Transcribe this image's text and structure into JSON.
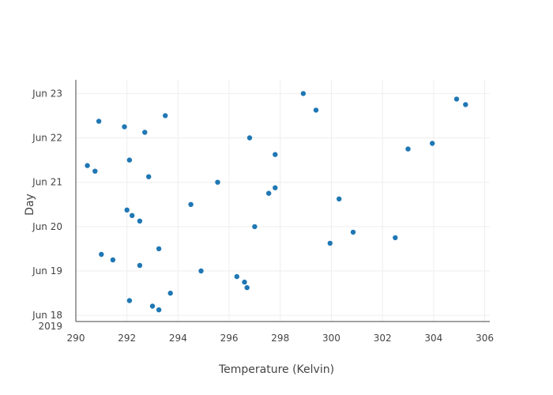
{
  "chart_data": {
    "type": "scatter",
    "xlabel": "Temperature (Kelvin)",
    "ylabel": "Day",
    "xlim": [
      290.0,
      306.2
    ],
    "x_ticks": [
      290,
      292,
      294,
      296,
      298,
      300,
      302,
      304,
      306
    ],
    "ylim": [
      "2019-06-17T20:40",
      "2019-06-23T07:25"
    ],
    "y_ticks": [
      {
        "value": "2019-06-18",
        "label": "Jun 18",
        "sublabel": "2019"
      },
      {
        "value": "2019-06-19",
        "label": "Jun 19",
        "sublabel": ""
      },
      {
        "value": "2019-06-20",
        "label": "Jun 20",
        "sublabel": ""
      },
      {
        "value": "2019-06-21",
        "label": "Jun 21",
        "sublabel": ""
      },
      {
        "value": "2019-06-22",
        "label": "Jun 22",
        "sublabel": ""
      },
      {
        "value": "2019-06-23",
        "label": "Jun 23",
        "sublabel": ""
      }
    ],
    "grid": true,
    "color": "#1f77b4",
    "points": [
      {
        "x": 292.1,
        "y": "2019-06-18T08:00"
      },
      {
        "x": 293.0,
        "y": "2019-06-18T05:00"
      },
      {
        "x": 293.25,
        "y": "2019-06-18T03:00"
      },
      {
        "x": 293.7,
        "y": "2019-06-18T12:00"
      },
      {
        "x": 291.0,
        "y": "2019-06-19T09:00"
      },
      {
        "x": 291.45,
        "y": "2019-06-19T06:00"
      },
      {
        "x": 292.5,
        "y": "2019-06-19T03:00"
      },
      {
        "x": 293.25,
        "y": "2019-06-19T12:00"
      },
      {
        "x": 294.9,
        "y": "2019-06-19T00:00"
      },
      {
        "x": 296.3,
        "y": "2019-06-18T21:00"
      },
      {
        "x": 296.6,
        "y": "2019-06-18T18:00"
      },
      {
        "x": 296.7,
        "y": "2019-06-18T15:00"
      },
      {
        "x": 292.0,
        "y": "2019-06-20T09:00"
      },
      {
        "x": 292.2,
        "y": "2019-06-20T06:00"
      },
      {
        "x": 292.5,
        "y": "2019-06-20T03:00"
      },
      {
        "x": 294.5,
        "y": "2019-06-20T12:00"
      },
      {
        "x": 297.0,
        "y": "2019-06-20T00:00"
      },
      {
        "x": 299.95,
        "y": "2019-06-19T15:00"
      },
      {
        "x": 300.85,
        "y": "2019-06-19T21:00"
      },
      {
        "x": 302.5,
        "y": "2019-06-19T18:00"
      },
      {
        "x": 290.45,
        "y": "2019-06-21T09:00"
      },
      {
        "x": 290.75,
        "y": "2019-06-21T06:00"
      },
      {
        "x": 292.1,
        "y": "2019-06-21T12:00"
      },
      {
        "x": 292.85,
        "y": "2019-06-21T03:00"
      },
      {
        "x": 295.55,
        "y": "2019-06-21T00:00"
      },
      {
        "x": 297.55,
        "y": "2019-06-20T18:00"
      },
      {
        "x": 297.8,
        "y": "2019-06-20T21:00"
      },
      {
        "x": 300.3,
        "y": "2019-06-20T15:00"
      },
      {
        "x": 290.9,
        "y": "2019-06-22T09:00"
      },
      {
        "x": 291.9,
        "y": "2019-06-22T06:00"
      },
      {
        "x": 292.7,
        "y": "2019-06-22T03:00"
      },
      {
        "x": 293.5,
        "y": "2019-06-22T12:00"
      },
      {
        "x": 296.8,
        "y": "2019-06-22T00:00"
      },
      {
        "x": 297.8,
        "y": "2019-06-21T15:00"
      },
      {
        "x": 303.0,
        "y": "2019-06-21T18:00"
      },
      {
        "x": 303.95,
        "y": "2019-06-21T21:00"
      },
      {
        "x": 298.9,
        "y": "2019-06-23T00:00"
      },
      {
        "x": 299.4,
        "y": "2019-06-22T15:00"
      },
      {
        "x": 304.9,
        "y": "2019-06-22T21:00"
      },
      {
        "x": 305.25,
        "y": "2019-06-22T18:00"
      }
    ]
  }
}
